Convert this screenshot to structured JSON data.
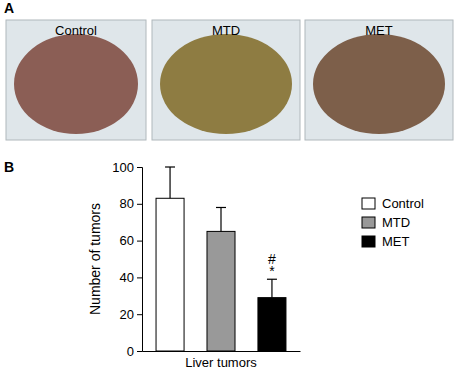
{
  "panels": [
    {
      "label": "A",
      "captions": [
        "Control",
        "MTD",
        "MET"
      ]
    },
    {
      "label": "B"
    }
  ],
  "chart_data": {
    "type": "bar",
    "categories": [
      "Liver tumors"
    ],
    "y_label": "Number of tumors",
    "ylim": [
      0,
      100
    ],
    "yticks": [
      0,
      20,
      40,
      60,
      80,
      100
    ],
    "series": [
      {
        "name": "Control",
        "color": "#ffffff",
        "values": [
          83
        ],
        "errors": [
          17
        ]
      },
      {
        "name": "MTD",
        "color": "#999999",
        "values": [
          65
        ],
        "errors": [
          13
        ]
      },
      {
        "name": "MET",
        "color": "#000000",
        "values": [
          29
        ],
        "errors": [
          10
        ]
      }
    ],
    "annotations": [
      {
        "text": "#",
        "series": "MET"
      },
      {
        "text": "*",
        "series": "MET"
      }
    ],
    "legend": "upper right"
  }
}
